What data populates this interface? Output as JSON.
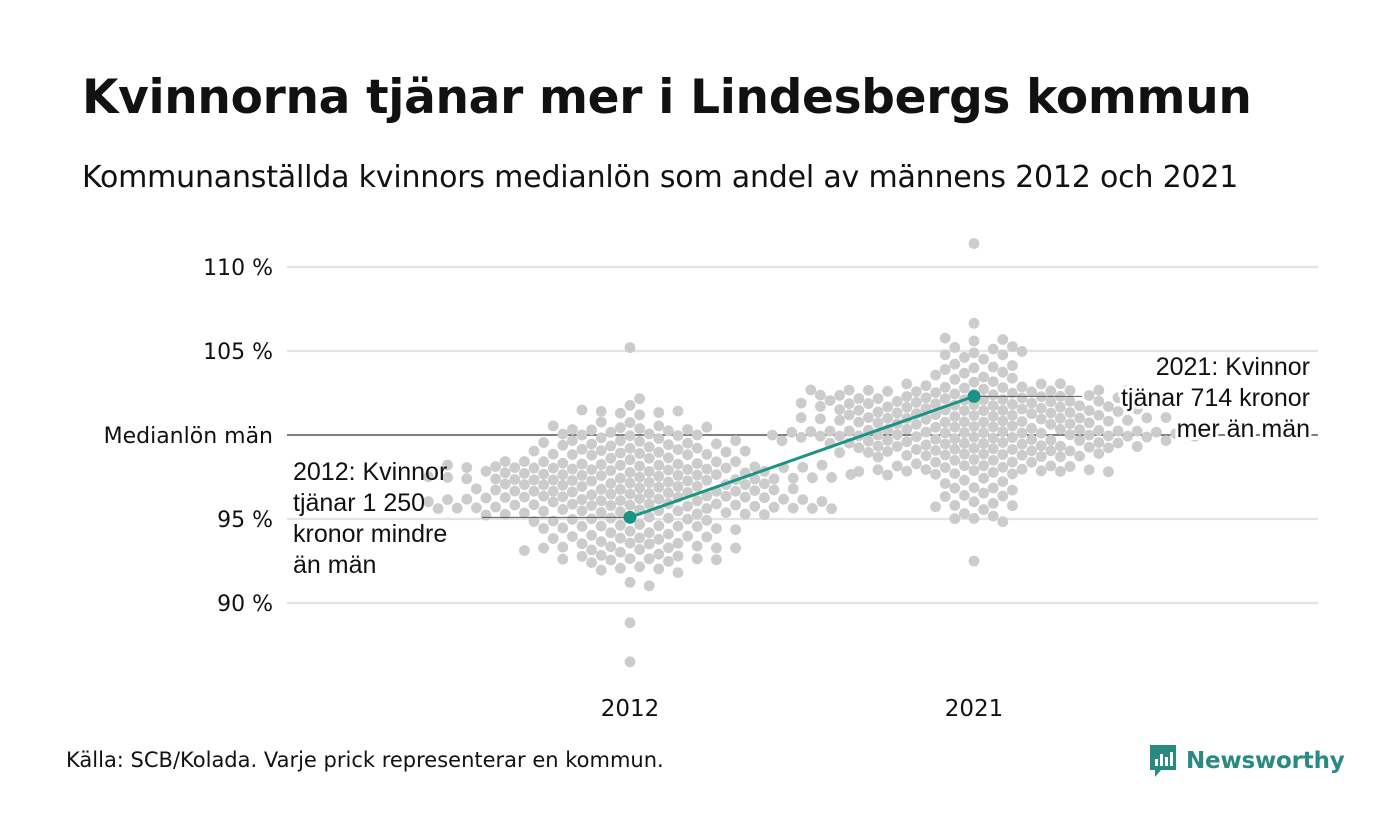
{
  "header": {
    "title": "Kvinnorna tjänar mer i Lindesbergs kommun",
    "subtitle": "Kommunanställda kvinnors medianlön som andel av männens 2012 och 2021"
  },
  "footer": {
    "source": "Källa: SCB/Kolada. Varje prick representerar en kommun.",
    "brand": "Newsworthy"
  },
  "colors": {
    "accent": "#1a9485",
    "dots": "#cccccc",
    "grid": "#e3e3e3",
    "reference_line": "#333333",
    "brand": "#2a8a81"
  },
  "chart_data": {
    "type": "scatter",
    "subtype": "beeswarm",
    "categories": [
      "2012",
      "2021"
    ],
    "y_unit": "%",
    "ylim": [
      86,
      112
    ],
    "y_ticks": [
      {
        "value": 90,
        "label": "90 %"
      },
      {
        "value": 95,
        "label": "95 %"
      },
      {
        "value": 100,
        "label": "Medianlön män"
      },
      {
        "value": 105,
        "label": "105 %"
      },
      {
        "value": 110,
        "label": "110 %"
      }
    ],
    "reference_line": {
      "value": 100,
      "label": "Medianlön män"
    },
    "grid": true,
    "distribution": [
      {
        "category": "2012",
        "min": 86.5,
        "max": 105.2,
        "center": 96.5,
        "count": 290
      },
      {
        "category": "2021",
        "min": 92.5,
        "max": 111.4,
        "center": 100.5,
        "count": 290
      }
    ],
    "highlight": {
      "name": "Lindesbergs kommun",
      "values": [
        {
          "category": "2012",
          "value": 95.1
        },
        {
          "category": "2021",
          "value": 102.3
        }
      ]
    },
    "annotations": [
      {
        "category": "2012",
        "lines": [
          "2012: Kvinnor",
          "tjänar 1 250",
          "kronor mindre",
          "än män"
        ]
      },
      {
        "category": "2021",
        "lines": [
          "2021: Kvinnor",
          "tjänar 714 kronor",
          "mer än män"
        ]
      }
    ]
  }
}
